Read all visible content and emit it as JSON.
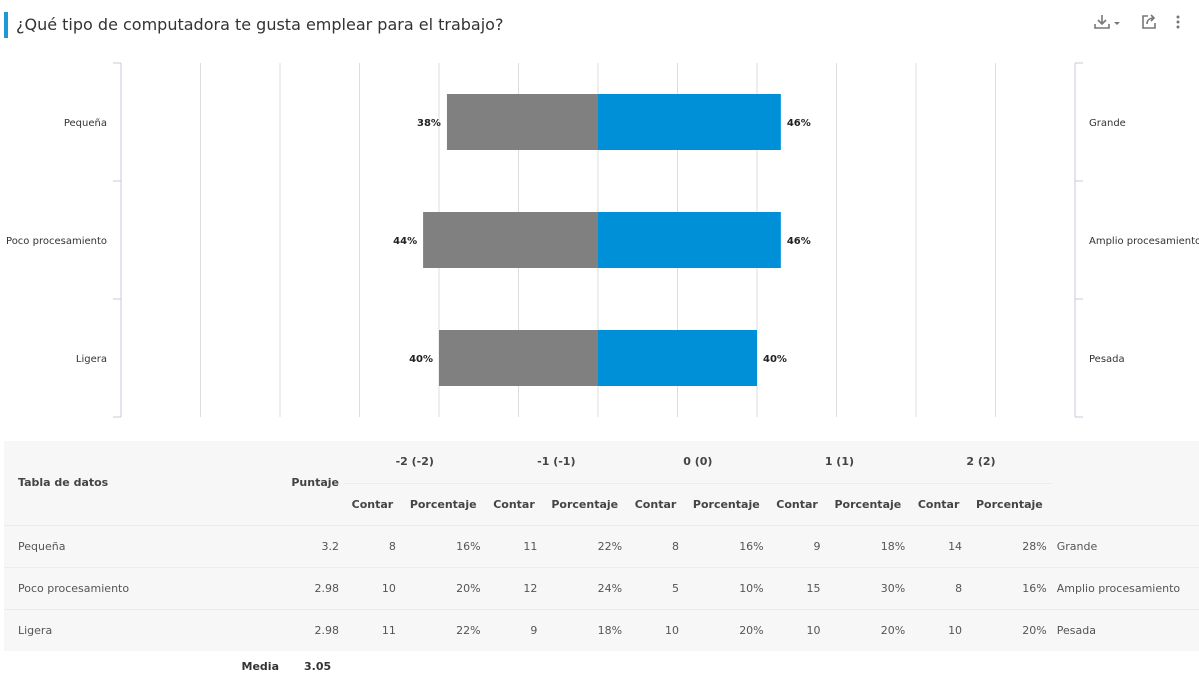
{
  "header": {
    "title": "¿Qué tipo de computadora te gusta emplear para el trabajo?",
    "icons": [
      "download-icon",
      "share-icon",
      "more-vertical-icon"
    ]
  },
  "chart_data": {
    "type": "bar",
    "orientation": "horizontal-diverging",
    "categories_left": [
      "Pequeña",
      "Poco procesamiento",
      "Ligera"
    ],
    "categories_right": [
      "Grande",
      "Amplio procesamiento",
      "Pesada"
    ],
    "series": [
      {
        "side": "left",
        "values": [
          38,
          44,
          40
        ],
        "labels": [
          "38%",
          "44%",
          "40%"
        ],
        "color": "#808080"
      },
      {
        "side": "right",
        "values": [
          46,
          46,
          40
        ],
        "labels": [
          "46%",
          "46%",
          "40%"
        ],
        "color": "#0090d8"
      }
    ],
    "xlim": [
      -120,
      120
    ],
    "grid": true
  },
  "table": {
    "title": "Tabla de datos",
    "score_header": "Puntaje",
    "groups": [
      "-2 (-2)",
      "-1 (-1)",
      "0 (0)",
      "1 (1)",
      "2 (2)"
    ],
    "sub_headers": [
      "Contar",
      "Porcentaje"
    ],
    "rows": [
      {
        "label": "Pequeña",
        "score": "3.2",
        "cells": [
          "8",
          "16%",
          "11",
          "22%",
          "8",
          "16%",
          "9",
          "18%",
          "14",
          "28%"
        ],
        "right": "Grande"
      },
      {
        "label": "Poco procesamiento",
        "score": "2.98",
        "cells": [
          "10",
          "20%",
          "12",
          "24%",
          "5",
          "10%",
          "15",
          "30%",
          "8",
          "16%"
        ],
        "right": "Amplio procesamiento"
      },
      {
        "label": "Ligera",
        "score": "2.98",
        "cells": [
          "11",
          "22%",
          "9",
          "18%",
          "10",
          "20%",
          "10",
          "20%",
          "10",
          "20%"
        ],
        "right": "Pesada"
      }
    ],
    "footer": {
      "label": "Media",
      "value": "3.05"
    }
  }
}
